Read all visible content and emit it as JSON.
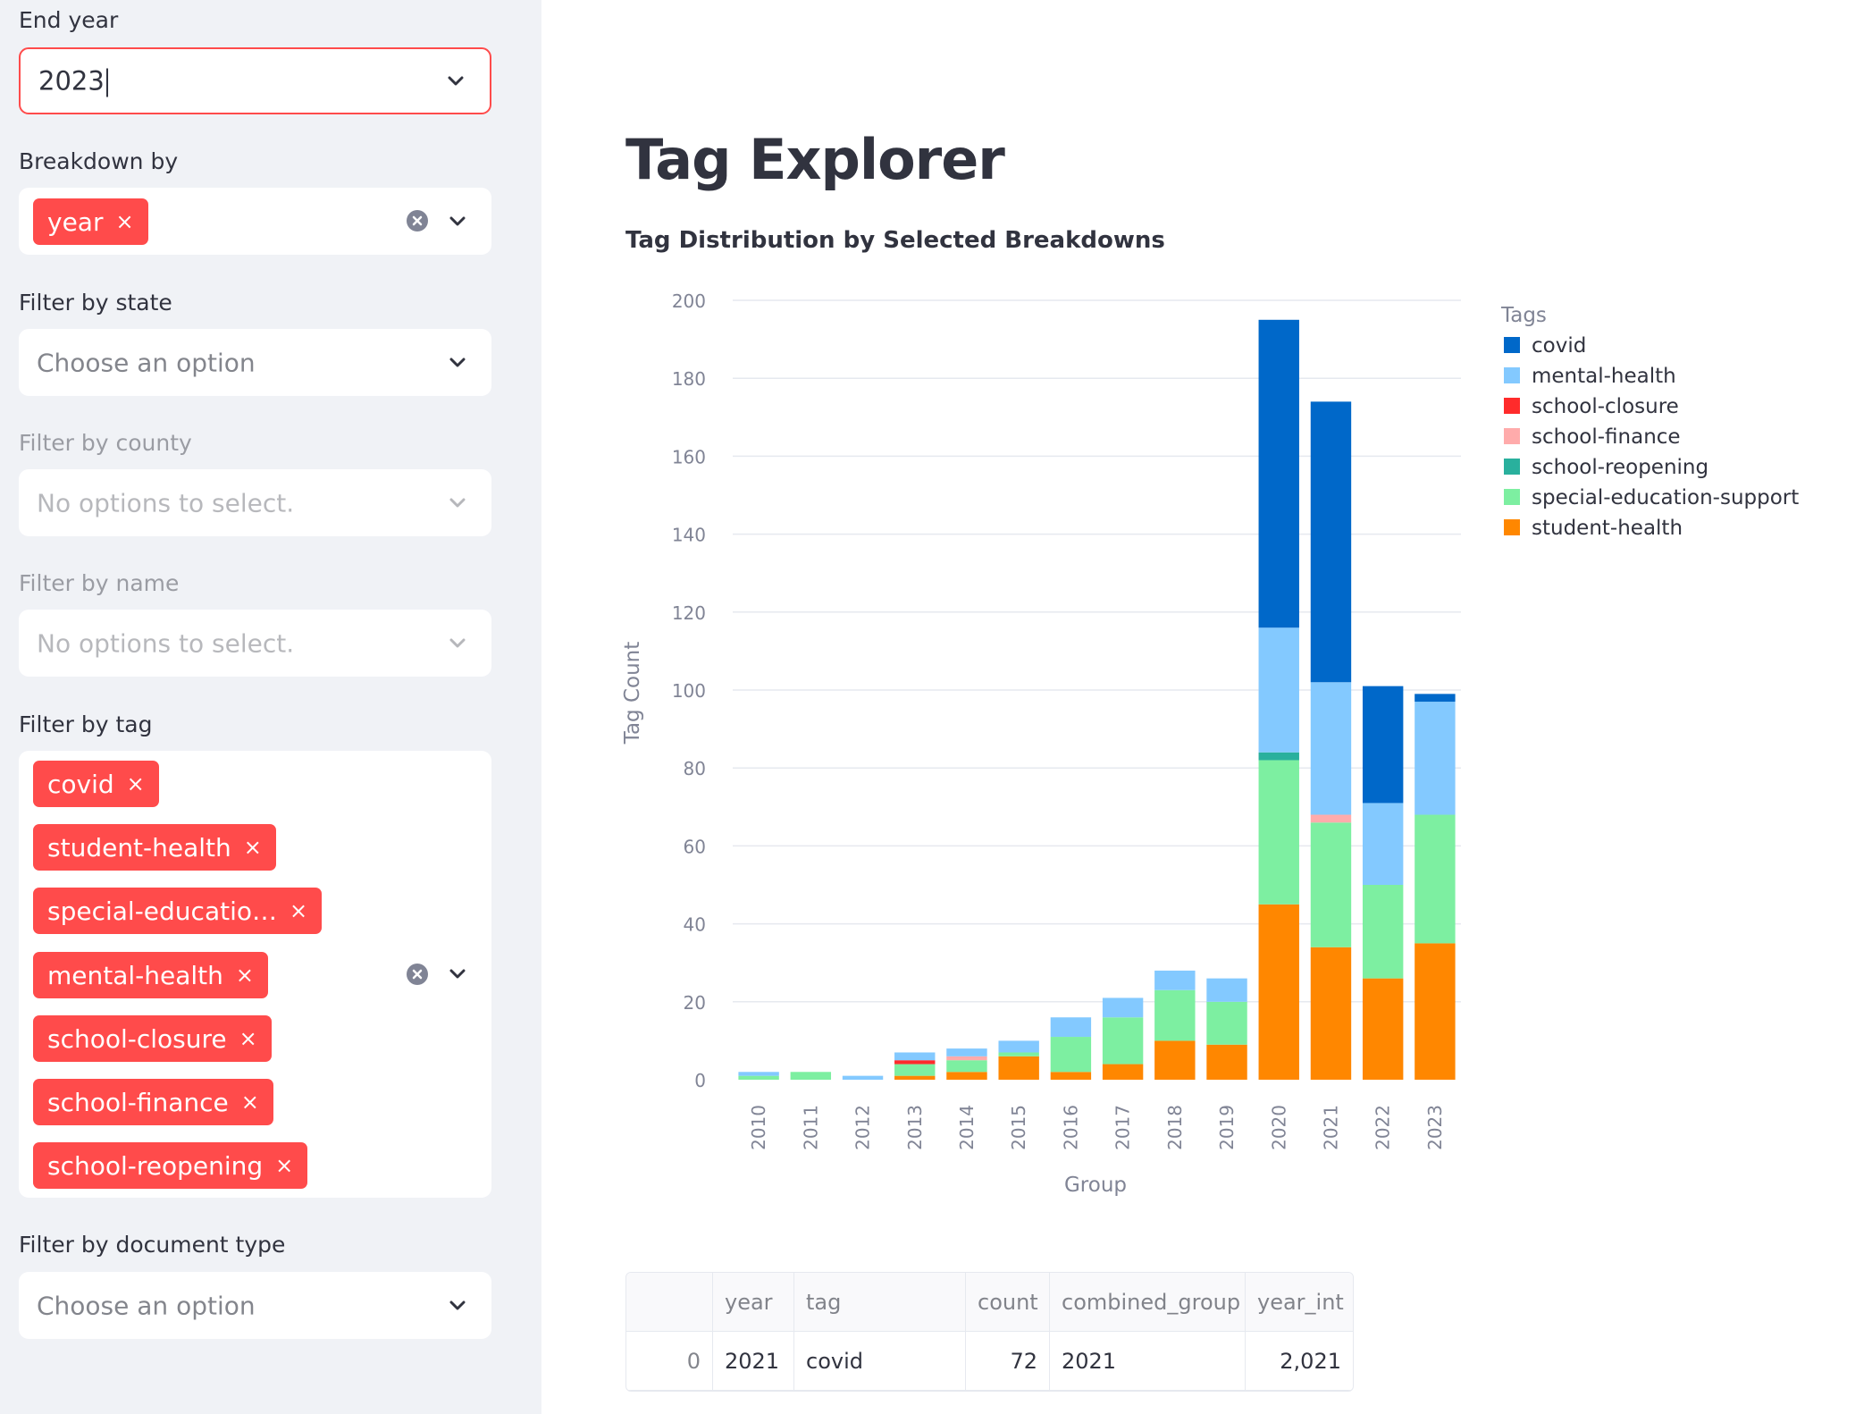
{
  "sidebar": {
    "end_year": {
      "label": "End year",
      "value": "2023"
    },
    "breakdown": {
      "label": "Breakdown by",
      "chips": [
        "year"
      ]
    },
    "state": {
      "label": "Filter by state",
      "placeholder": "Choose an option"
    },
    "county": {
      "label": "Filter by county",
      "placeholder": "No options to select."
    },
    "name": {
      "label": "Filter by name",
      "placeholder": "No options to select."
    },
    "tag": {
      "label": "Filter by tag",
      "chips": [
        "covid",
        "student-health",
        "special-educatio…",
        "mental-health",
        "school-closure",
        "school-finance",
        "school-reopening"
      ]
    },
    "doctype": {
      "label": "Filter by document type",
      "placeholder": "Choose an option"
    },
    "chip_remove_glyph": "×"
  },
  "main": {
    "title": "Tag Explorer",
    "chart_title": "Tag Distribution by Selected Breakdowns"
  },
  "chart_data": {
    "type": "bar",
    "stacked": true,
    "xlabel": "Group",
    "ylabel": "Tag Count",
    "ylim": [
      0,
      200
    ],
    "yticks": [
      0,
      20,
      40,
      60,
      80,
      100,
      120,
      140,
      160,
      180,
      200
    ],
    "grid": true,
    "legend_title": "Tags",
    "legend_position": "right",
    "categories": [
      "2010",
      "2011",
      "2012",
      "2013",
      "2014",
      "2015",
      "2016",
      "2017",
      "2018",
      "2019",
      "2020",
      "2021",
      "2022",
      "2023"
    ],
    "series": [
      {
        "name": "student-health",
        "color": "#ff8700",
        "values": [
          0,
          0,
          0,
          1,
          2,
          6,
          2,
          4,
          10,
          9,
          45,
          34,
          26,
          35
        ]
      },
      {
        "name": "special-education-support",
        "color": "#7defa1",
        "values": [
          1,
          2,
          0,
          3,
          3,
          1,
          9,
          12,
          13,
          11,
          37,
          32,
          24,
          33
        ]
      },
      {
        "name": "school-reopening",
        "color": "#29b09d",
        "values": [
          0,
          0,
          0,
          0,
          0,
          0,
          0,
          0,
          0,
          0,
          2,
          0,
          0,
          0
        ]
      },
      {
        "name": "school-finance",
        "color": "#ffabab",
        "values": [
          0,
          0,
          0,
          0,
          1,
          0,
          0,
          0,
          0,
          0,
          0,
          2,
          0,
          0
        ]
      },
      {
        "name": "school-closure",
        "color": "#ff2b2b",
        "values": [
          0,
          0,
          0,
          1,
          0,
          0,
          0,
          0,
          0,
          0,
          0,
          0,
          0,
          0
        ]
      },
      {
        "name": "mental-health",
        "color": "#83c9ff",
        "values": [
          1,
          0,
          1,
          2,
          2,
          3,
          5,
          5,
          5,
          6,
          32,
          34,
          21,
          29
        ]
      },
      {
        "name": "covid",
        "color": "#0068c9",
        "values": [
          0,
          0,
          0,
          0,
          0,
          0,
          0,
          0,
          0,
          0,
          79,
          72,
          30,
          2
        ]
      }
    ],
    "legend_order": [
      "covid",
      "mental-health",
      "school-closure",
      "school-finance",
      "school-reopening",
      "special-education-support",
      "student-health"
    ]
  },
  "table": {
    "columns": [
      "",
      "year",
      "tag",
      "count",
      "combined_group",
      "year_int"
    ],
    "rows": [
      [
        "0",
        "2021",
        "covid",
        "72",
        "2021",
        "2,021"
      ]
    ]
  }
}
